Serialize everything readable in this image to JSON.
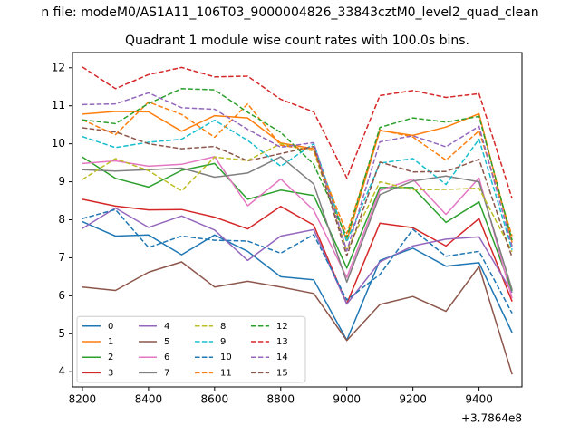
{
  "suptitle": "n file: modeM0/AS1A11_106T03_9000004826_33843cztM0_level2_quad_clean",
  "chart_data": {
    "type": "line",
    "title": "Quadrant 1 module wise count rates with 100.0s bins.",
    "xlabel": "",
    "ylabel": "",
    "offset_label": "+3.7864e8",
    "xlim": [
      8170,
      9530
    ],
    "ylim": [
      3.6,
      12.4
    ],
    "xticks": [
      8200,
      8400,
      8600,
      8800,
      9000,
      9200,
      9400
    ],
    "xtick_labels": [
      "8200",
      "8400",
      "8600",
      "8800",
      "9000",
      "9200",
      "9400"
    ],
    "yticks": [
      4,
      5,
      6,
      7,
      8,
      9,
      10,
      11,
      12
    ],
    "ytick_labels": [
      "4",
      "5",
      "6",
      "7",
      "8",
      "9",
      "10",
      "11",
      "12"
    ],
    "grid": false,
    "legend_position": "lower-left",
    "legend_columns": 4,
    "x": [
      8200,
      8300,
      8400,
      8500,
      8600,
      8700,
      8800,
      8900,
      9000,
      9100,
      9200,
      9300,
      9400,
      9500
    ],
    "series": [
      {
        "name": "0",
        "color": "#1f77b4",
        "dash": "solid",
        "values": [
          7.95,
          7.57,
          7.6,
          7.08,
          7.6,
          7.17,
          6.5,
          6.42,
          4.83,
          6.93,
          7.25,
          6.78,
          6.87,
          5.03
        ]
      },
      {
        "name": "1",
        "color": "#ff7f0e",
        "dash": "solid",
        "values": [
          10.78,
          10.85,
          10.84,
          10.33,
          10.74,
          10.68,
          10.02,
          9.87,
          7.45,
          10.35,
          10.22,
          10.44,
          10.79,
          7.4
        ]
      },
      {
        "name": "2",
        "color": "#2ca02c",
        "dash": "solid",
        "values": [
          9.65,
          9.09,
          8.86,
          9.3,
          9.48,
          8.54,
          8.78,
          8.64,
          6.73,
          8.85,
          8.85,
          7.93,
          8.47,
          6.12
        ]
      },
      {
        "name": "3",
        "color": "#d62728",
        "dash": "solid",
        "values": [
          8.54,
          8.36,
          8.26,
          8.27,
          8.07,
          7.76,
          8.35,
          7.86,
          5.79,
          7.91,
          7.79,
          7.31,
          8.03,
          5.85
        ]
      },
      {
        "name": "4",
        "color": "#9467bd",
        "dash": "solid",
        "values": [
          7.77,
          8.31,
          7.8,
          8.1,
          7.73,
          6.93,
          7.57,
          7.74,
          5.78,
          6.89,
          7.31,
          7.49,
          7.55,
          6.08
        ]
      },
      {
        "name": "5",
        "color": "#8c564b",
        "dash": "solid",
        "values": [
          6.23,
          6.14,
          6.62,
          6.89,
          6.23,
          6.38,
          6.23,
          6.06,
          4.82,
          5.77,
          5.98,
          5.59,
          6.77,
          3.93
        ]
      },
      {
        "name": "6",
        "color": "#e377c2",
        "dash": "solid",
        "values": [
          9.48,
          9.55,
          9.41,
          9.46,
          9.66,
          8.37,
          9.07,
          8.25,
          6.48,
          8.77,
          9.07,
          8.14,
          9.1,
          5.93
        ]
      },
      {
        "name": "7",
        "color": "#7f7f7f",
        "dash": "solid",
        "values": [
          9.32,
          9.28,
          9.32,
          9.36,
          9.12,
          9.23,
          9.66,
          8.94,
          6.36,
          8.66,
          9.02,
          9.15,
          9.0,
          6.16
        ]
      },
      {
        "name": "8",
        "color": "#bcbd22",
        "dash": "dashed",
        "values": [
          9.06,
          9.61,
          9.29,
          8.76,
          9.65,
          9.56,
          10.0,
          9.81,
          7.19,
          9.0,
          8.79,
          8.8,
          8.83,
          7.16
        ]
      },
      {
        "name": "9",
        "color": "#17becf",
        "dash": "dashed",
        "values": [
          10.19,
          9.9,
          10.04,
          10.12,
          10.62,
          10.09,
          9.41,
          10.0,
          7.42,
          9.49,
          9.61,
          8.93,
          10.12,
          7.21
        ]
      },
      {
        "name": "10",
        "color": "#1f77b4",
        "dash": "dashed",
        "values": [
          8.03,
          8.27,
          7.27,
          7.57,
          7.46,
          7.44,
          7.12,
          7.61,
          5.89,
          6.56,
          7.75,
          7.04,
          7.17,
          5.54
        ]
      },
      {
        "name": "11",
        "color": "#ff7f0e",
        "dash": "dashed",
        "values": [
          10.63,
          10.24,
          11.1,
          10.77,
          10.17,
          11.05,
          9.96,
          9.83,
          7.64,
          10.36,
          10.18,
          9.57,
          10.34,
          7.57
        ]
      },
      {
        "name": "12",
        "color": "#2ca02c",
        "dash": "dashed",
        "values": [
          10.63,
          10.53,
          11.06,
          11.45,
          11.42,
          10.83,
          10.3,
          9.46,
          7.54,
          10.43,
          10.68,
          10.57,
          10.72,
          7.46
        ]
      },
      {
        "name": "13",
        "color": "#d62728",
        "dash": "dashed",
        "values": [
          12.02,
          11.45,
          11.82,
          12.01,
          11.76,
          11.78,
          11.17,
          10.84,
          9.1,
          11.27,
          11.4,
          11.22,
          11.32,
          8.56
        ]
      },
      {
        "name": "14",
        "color": "#9467bd",
        "dash": "dashed",
        "values": [
          11.03,
          11.05,
          11.34,
          10.95,
          10.91,
          10.38,
          9.91,
          10.03,
          7.18,
          10.05,
          10.21,
          9.92,
          10.46,
          7.3
        ]
      },
      {
        "name": "15",
        "color": "#8c564b",
        "dash": "dashed",
        "values": [
          10.42,
          10.31,
          10.0,
          9.87,
          9.93,
          9.55,
          9.74,
          9.93,
          7.05,
          9.52,
          9.26,
          9.27,
          9.59,
          7.01
        ]
      }
    ]
  }
}
